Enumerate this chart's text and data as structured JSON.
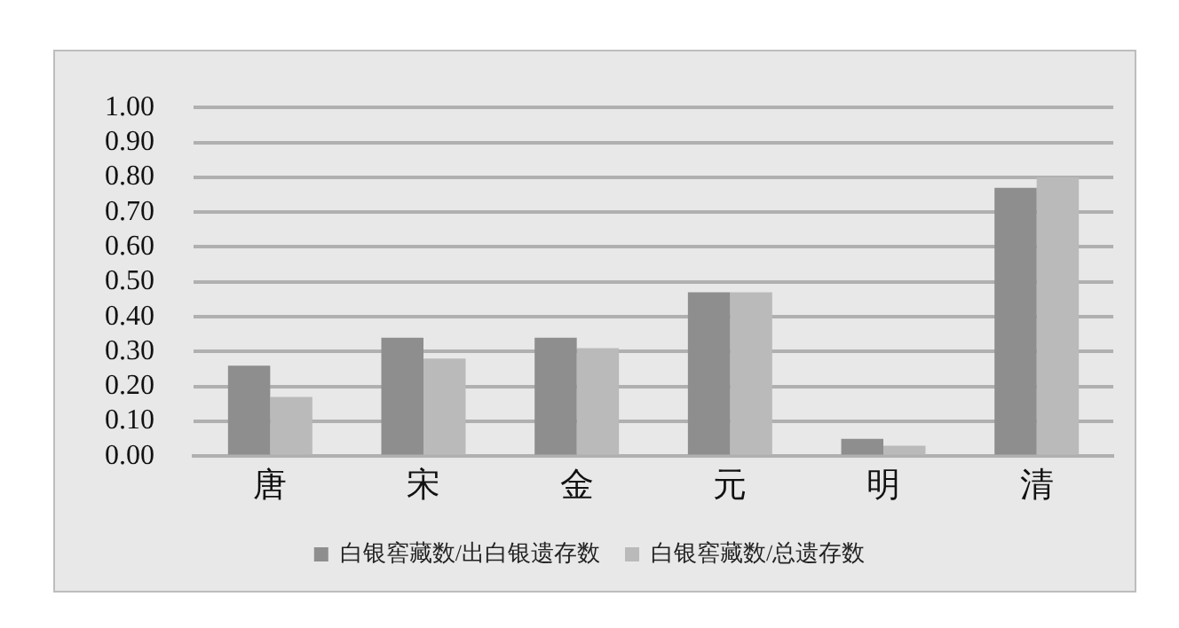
{
  "chart_data": {
    "type": "bar",
    "categories": [
      "唐",
      "宋",
      "金",
      "元",
      "明",
      "清"
    ],
    "series": [
      {
        "name": "白银窖藏数/出白银遗存数",
        "color": "#8e8e8e",
        "values": [
          0.26,
          0.34,
          0.34,
          0.47,
          0.05,
          0.77
        ]
      },
      {
        "name": "白银窖藏数/总遗存数",
        "color": "#bababa",
        "values": [
          0.17,
          0.28,
          0.31,
          0.47,
          0.03,
          0.8
        ]
      }
    ],
    "ylim": [
      0,
      1
    ],
    "yticks": [
      {
        "value": 0,
        "label": "0.00"
      },
      {
        "value": 0.1,
        "label": "0.10"
      },
      {
        "value": 0.2,
        "label": "0.20"
      },
      {
        "value": 0.3,
        "label": "0.30"
      },
      {
        "value": 0.4,
        "label": "0.40"
      },
      {
        "value": 0.5,
        "label": "0.50"
      },
      {
        "value": 0.6,
        "label": "0.60"
      },
      {
        "value": 0.7,
        "label": "0.70"
      },
      {
        "value": 0.8,
        "label": "0.80"
      },
      {
        "value": 0.9,
        "label": "0.90"
      },
      {
        "value": 1,
        "label": "1.00"
      }
    ],
    "grid": "y",
    "legend": "bottom"
  }
}
